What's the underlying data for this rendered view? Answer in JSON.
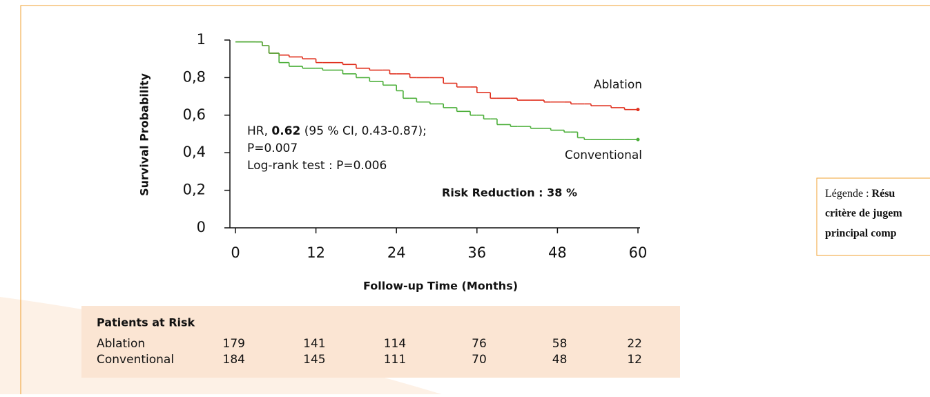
{
  "chart_data": {
    "type": "step",
    "xlabel": "Follow-up Time (Months)",
    "ylabel": "Survival Probability",
    "x": [
      0,
      3,
      4,
      5,
      6.5,
      8,
      10,
      12,
      13,
      16,
      18,
      20,
      22,
      23,
      24,
      25,
      26,
      27,
      29,
      31,
      33,
      35,
      36,
      37,
      38,
      39,
      41,
      42,
      44,
      46,
      47,
      49,
      50,
      51,
      52,
      53,
      56,
      58,
      60
    ],
    "series": [
      {
        "name": "Ablation",
        "color": "#e0301e",
        "values": [
          0.99,
          0.99,
          0.97,
          0.93,
          0.92,
          0.91,
          0.9,
          0.88,
          0.88,
          0.87,
          0.85,
          0.84,
          0.84,
          0.82,
          0.82,
          0.82,
          0.8,
          0.8,
          0.8,
          0.77,
          0.75,
          0.75,
          0.72,
          0.72,
          0.69,
          0.69,
          0.69,
          0.68,
          0.68,
          0.67,
          0.67,
          0.67,
          0.66,
          0.66,
          0.66,
          0.65,
          0.64,
          0.63,
          0.63
        ]
      },
      {
        "name": "Conventional",
        "color": "#4caf3a",
        "values": [
          0.99,
          0.99,
          0.97,
          0.93,
          0.88,
          0.86,
          0.85,
          0.85,
          0.84,
          0.82,
          0.8,
          0.78,
          0.76,
          0.76,
          0.73,
          0.69,
          0.69,
          0.67,
          0.66,
          0.64,
          0.62,
          0.6,
          0.6,
          0.58,
          0.58,
          0.55,
          0.54,
          0.54,
          0.53,
          0.53,
          0.52,
          0.51,
          0.51,
          0.48,
          0.47,
          0.47,
          0.47,
          0.47,
          0.47
        ]
      }
    ],
    "xlim": [
      0,
      60
    ],
    "xticks": [
      0,
      12,
      24,
      36,
      48,
      60
    ],
    "ylim": [
      0,
      1
    ],
    "yticks": [
      0,
      {
        "value": 0.2,
        "label": "0,2"
      },
      {
        "value": 0.4,
        "label": "0,4"
      },
      {
        "value": 0.6,
        "label": "0,6"
      },
      {
        "value": 0.8,
        "label": "0,8"
      },
      1
    ],
    "annotations": {
      "hr_prefix": "HR, ",
      "hr_value": "0.62",
      "hr_suffix": " (95 % CI, 0.43-0.87);",
      "p_value": "P=0.007",
      "logrank": "Log-rank test : P=0.006",
      "risk_reduction": "Risk Reduction : 38 %"
    }
  },
  "risk_table": {
    "title": "Patients at Risk",
    "rows": [
      {
        "label": "Ablation",
        "values": [
          179,
          141,
          114,
          76,
          58,
          22
        ]
      },
      {
        "label": "Conventional",
        "values": [
          184,
          145,
          111,
          70,
          48,
          12
        ]
      }
    ]
  },
  "legend_box": {
    "prefix": "Légende : ",
    "lines": [
      "Résu",
      "critère de jugem",
      "principal comp"
    ]
  }
}
